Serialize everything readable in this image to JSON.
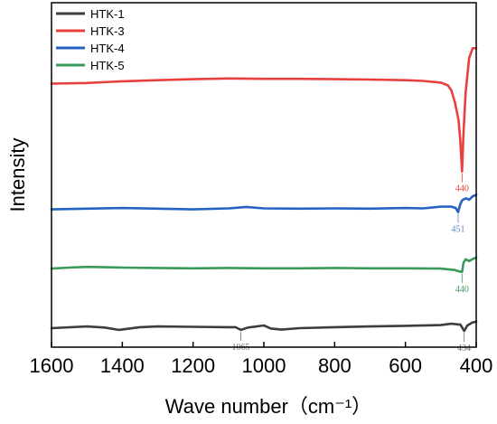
{
  "chart_data": {
    "type": "line",
    "title": "",
    "xlabel": "Wave number（cm⁻¹）",
    "ylabel": "Intensity",
    "xlim": [
      1600,
      400
    ],
    "x_reversed": true,
    "xticks": [
      "1600",
      "1400",
      "1200",
      "1000",
      "800",
      "600",
      "400"
    ],
    "ylim": [
      0,
      100
    ],
    "y_tick_labels": false,
    "grid": false,
    "legend_position": "top-left",
    "series": [
      {
        "name": "HTK-1",
        "color": "#3d3d3d",
        "points": [
          [
            1600,
            5.5
          ],
          [
            1500,
            6.0
          ],
          [
            1450,
            5.7
          ],
          [
            1410,
            5.0
          ],
          [
            1350,
            5.8
          ],
          [
            1300,
            6.0
          ],
          [
            1200,
            5.9
          ],
          [
            1100,
            5.8
          ],
          [
            1080,
            5.8
          ],
          [
            1065,
            5.0
          ],
          [
            1045,
            5.7
          ],
          [
            1000,
            6.3
          ],
          [
            980,
            5.4
          ],
          [
            950,
            5.1
          ],
          [
            900,
            5.5
          ],
          [
            800,
            5.8
          ],
          [
            700,
            6.0
          ],
          [
            600,
            6.2
          ],
          [
            500,
            6.4
          ],
          [
            470,
            6.8
          ],
          [
            450,
            6.6
          ],
          [
            445,
            6.6
          ],
          [
            434,
            4.7
          ],
          [
            425,
            6.3
          ],
          [
            410,
            7.2
          ],
          [
            400,
            7.4
          ]
        ]
      },
      {
        "name": "HTK-3",
        "color": "#e8403f",
        "points": [
          [
            1600,
            76.5
          ],
          [
            1500,
            76.7
          ],
          [
            1400,
            77.2
          ],
          [
            1300,
            77.5
          ],
          [
            1200,
            77.8
          ],
          [
            1100,
            78.0
          ],
          [
            1000,
            77.9
          ],
          [
            900,
            77.9
          ],
          [
            800,
            77.8
          ],
          [
            700,
            77.7
          ],
          [
            600,
            77.5
          ],
          [
            550,
            77.3
          ],
          [
            500,
            76.8
          ],
          [
            480,
            76.0
          ],
          [
            470,
            74.5
          ],
          [
            460,
            71.0
          ],
          [
            450,
            66.0
          ],
          [
            445,
            60.0
          ],
          [
            440,
            51.0
          ],
          [
            436,
            62.0
          ],
          [
            430,
            74.0
          ],
          [
            420,
            84.0
          ],
          [
            410,
            86.8
          ],
          [
            400,
            86.8
          ]
        ]
      },
      {
        "name": "HTK-4",
        "color": "#2463c3",
        "points": [
          [
            1600,
            40.0
          ],
          [
            1500,
            40.2
          ],
          [
            1400,
            40.4
          ],
          [
            1300,
            40.2
          ],
          [
            1200,
            40.0
          ],
          [
            1100,
            40.3
          ],
          [
            1050,
            40.7
          ],
          [
            1000,
            40.3
          ],
          [
            900,
            40.2
          ],
          [
            800,
            40.3
          ],
          [
            700,
            40.2
          ],
          [
            600,
            40.4
          ],
          [
            550,
            40.3
          ],
          [
            500,
            40.8
          ],
          [
            470,
            40.8
          ],
          [
            458,
            40.4
          ],
          [
            451,
            39.2
          ],
          [
            446,
            41.2
          ],
          [
            440,
            42.6
          ],
          [
            434,
            43.0
          ],
          [
            428,
            43.2
          ],
          [
            420,
            42.8
          ],
          [
            410,
            43.8
          ],
          [
            400,
            44.2
          ]
        ]
      },
      {
        "name": "HTK-5",
        "color": "#3a9a58",
        "points": [
          [
            1600,
            22.8
          ],
          [
            1550,
            23.1
          ],
          [
            1500,
            23.3
          ],
          [
            1400,
            23.1
          ],
          [
            1300,
            23.0
          ],
          [
            1200,
            22.9
          ],
          [
            1100,
            23.0
          ],
          [
            1000,
            22.9
          ],
          [
            900,
            22.9
          ],
          [
            800,
            23.0
          ],
          [
            700,
            22.9
          ],
          [
            600,
            22.9
          ],
          [
            500,
            22.8
          ],
          [
            460,
            22.4
          ],
          [
            448,
            22.0
          ],
          [
            440,
            21.8
          ],
          [
            436,
            24.5
          ],
          [
            430,
            25.5
          ],
          [
            420,
            25.0
          ],
          [
            410,
            25.6
          ],
          [
            400,
            26.0
          ]
        ]
      }
    ],
    "annotations": [
      {
        "text": "440",
        "series": "HTK-3",
        "x": 440,
        "y": 51.0,
        "color": "#e8403f"
      },
      {
        "text": "451",
        "series": "HTK-4",
        "x": 451,
        "y": 39.2,
        "color": "#5b86c8"
      },
      {
        "text": "440",
        "series": "HTK-5",
        "x": 440,
        "y": 21.8,
        "color": "#3a9a58"
      },
      {
        "text": "1065",
        "series": "HTK-1",
        "x": 1065,
        "y": 5.0,
        "color": "#707070"
      },
      {
        "text": "434",
        "series": "HTK-1",
        "x": 434,
        "y": 4.7,
        "color": "#707070"
      }
    ]
  }
}
